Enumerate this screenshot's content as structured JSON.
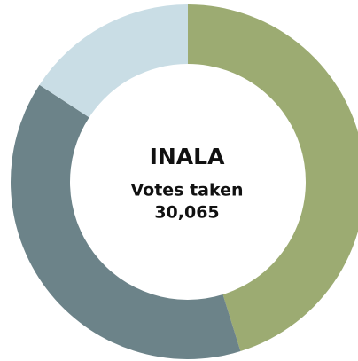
{
  "chart_data": {
    "type": "donut",
    "title": "INALA",
    "subtitle": "Votes taken",
    "total": "30,065",
    "values": [
      45.2,
      39.0,
      15.8
    ],
    "colors": [
      "#9cab72",
      "#6c8389",
      "#c9dde5"
    ]
  }
}
